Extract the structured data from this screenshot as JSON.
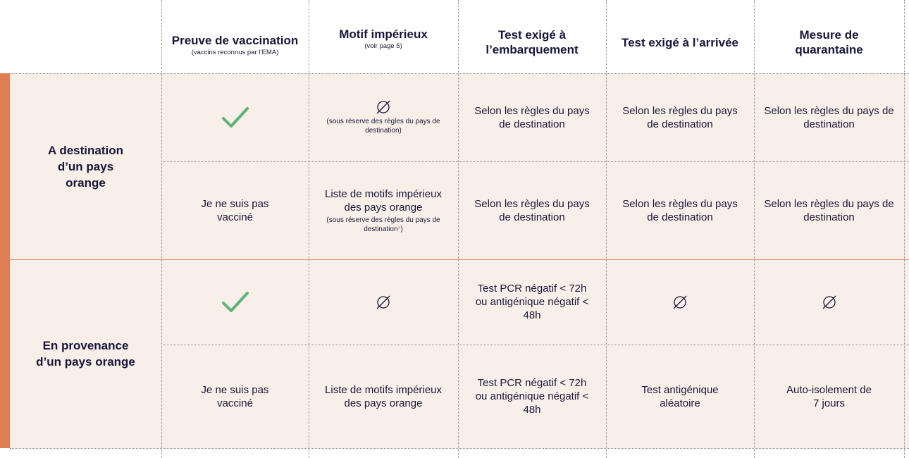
{
  "headers": [
    {
      "title": "Preuve de vaccination",
      "sub": "(vaccins reconnus par l’EMA)"
    },
    {
      "title": "Motif impérieux",
      "sub": "(voir page 5)"
    },
    {
      "title": "Test exigé à l’embarquement",
      "sub": ""
    },
    {
      "title": "Test exigé à l’arrivée",
      "sub": ""
    },
    {
      "title": "Mesure de quarantaine",
      "sub": ""
    }
  ],
  "groups": [
    {
      "title": "A destination d’un pays orange",
      "rows": [
        {
          "vaccination": "check-icon",
          "motif_icon": "empty-set-icon",
          "motif_note": "(sous réserve des règles du pays de destination)",
          "test_embarquement": "Selon les règles du pays de destination",
          "test_arrivee": "Selon les règles du pays de destination",
          "quarantaine": "Selon les règles du pays de destination"
        },
        {
          "vaccination": "Je ne suis pas vacciné",
          "motif": "Liste de motifs impérieux des pays orange",
          "motif_note": "(sous réserve des règles du pays de destination",
          "motif_note_mark": "*",
          "motif_note_end": ")",
          "test_embarquement": "Selon les règles du pays de destination",
          "test_arrivee": "Selon les règles du pays de destination",
          "quarantaine": "Selon les règles du pays de destination"
        }
      ]
    },
    {
      "title": "En provenance d’un pays orange",
      "rows": [
        {
          "vaccination": "check-icon",
          "motif_icon": "empty-set-icon",
          "test_embarquement": "Test PCR négatif < 72h ou antigénique négatif < 48h",
          "test_arrivee_icon": "empty-set-icon",
          "quarantaine_icon": "empty-set-icon"
        },
        {
          "vaccination": "Je ne suis pas vacciné",
          "motif": "Liste de motifs impérieux des pays orange",
          "test_embarquement": "Test PCR négatif < 72h ou antigénique négatif < 48h",
          "test_arrivee": "Test antigénique aléatoire",
          "quarantaine": "Auto-isolement de 7 jours"
        }
      ]
    }
  ],
  "colors": {
    "accent": "#de7e55",
    "row_tint": "#f9efe9",
    "check": "#5cb376",
    "text": "#16163a"
  }
}
